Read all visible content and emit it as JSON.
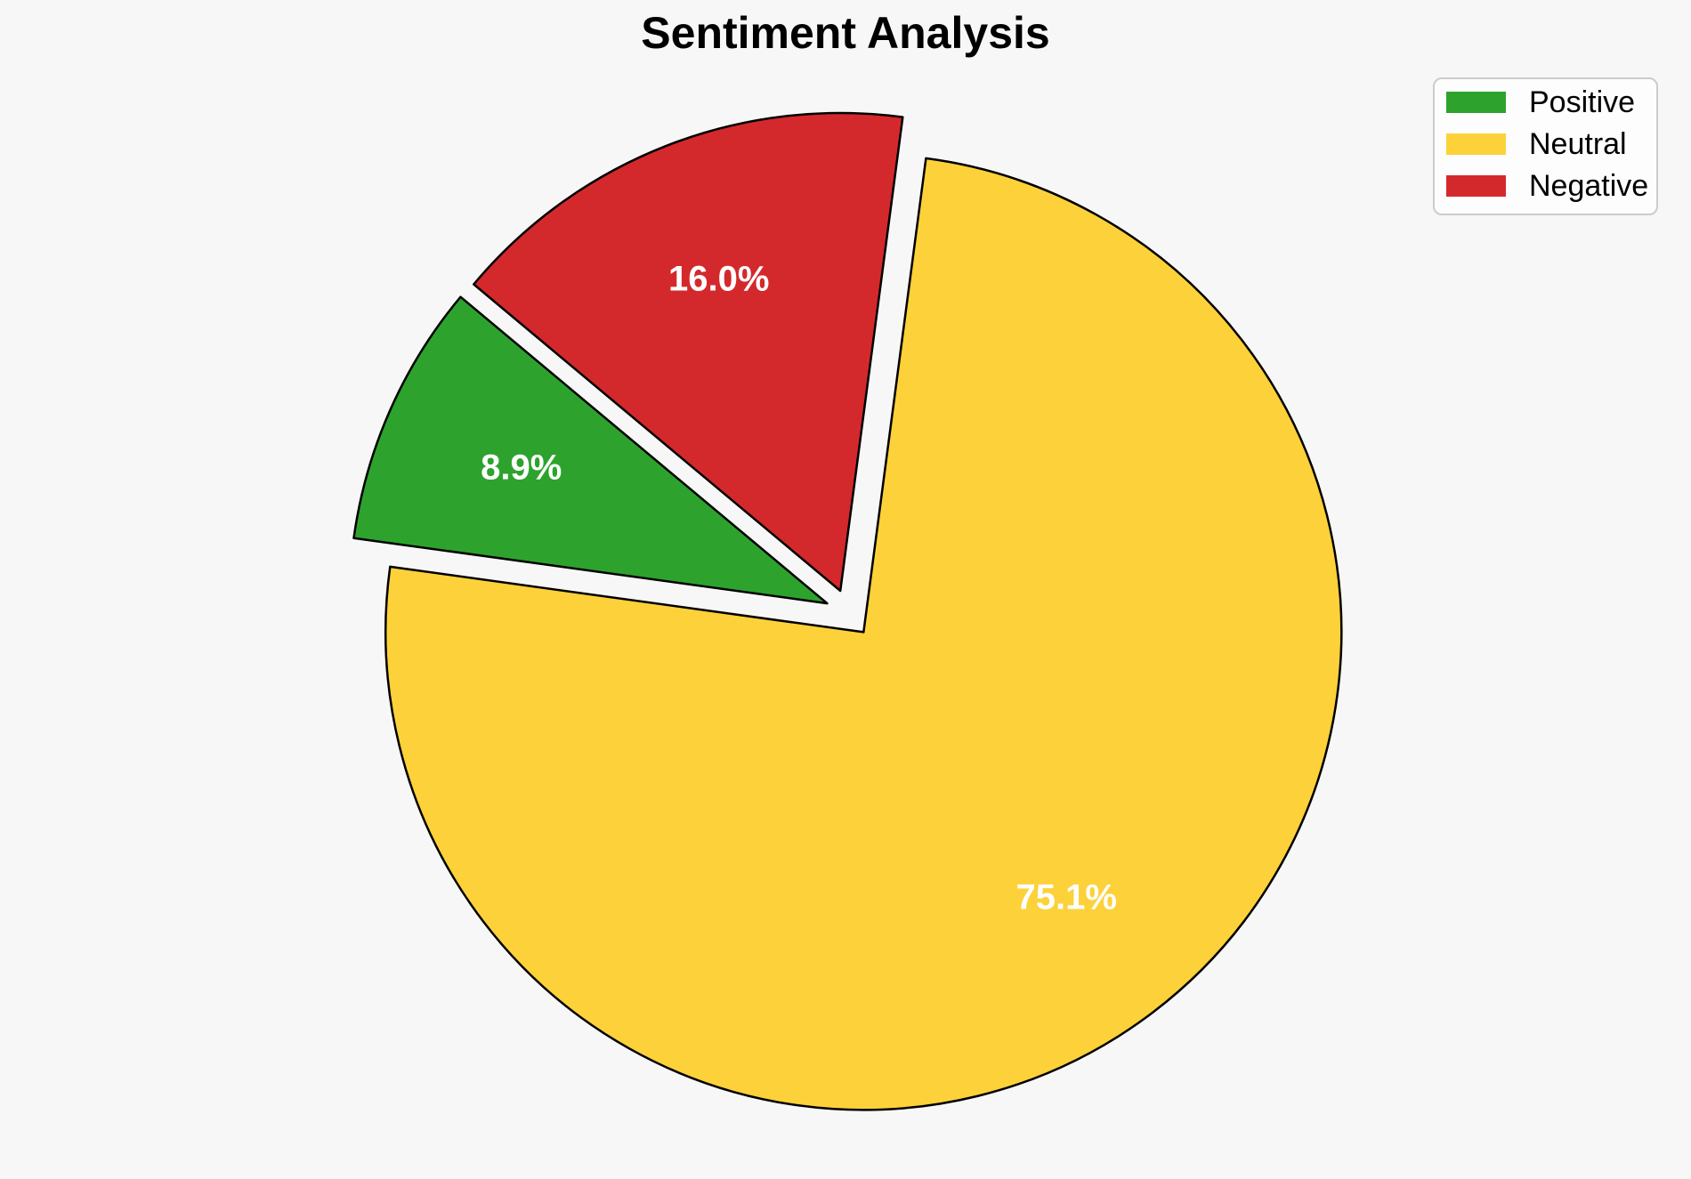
{
  "canvas": {
    "background": "#f7f7f7"
  },
  "chart_data": {
    "type": "pie",
    "title": "Sentiment Analysis",
    "labels": [
      "Positive",
      "Neutral",
      "Negative"
    ],
    "values": [
      8.9,
      75.1,
      16.0
    ],
    "pct_labels": [
      "8.9%",
      "75.1%",
      "16.0%"
    ],
    "colors": [
      "#2da32d",
      "#fdd13a",
      "#d4292c"
    ],
    "edge_color": "#000000",
    "pct_label_color": "#ffffff",
    "title_color": "#000000",
    "start_angle": 140.1,
    "direction": "counterclockwise",
    "explode": [
      0.05,
      0.05,
      0.05
    ],
    "pct_distance": 0.7,
    "legend": {
      "position": "upper right",
      "background": "#fdfdfd",
      "border_color": "#cccccc"
    }
  }
}
